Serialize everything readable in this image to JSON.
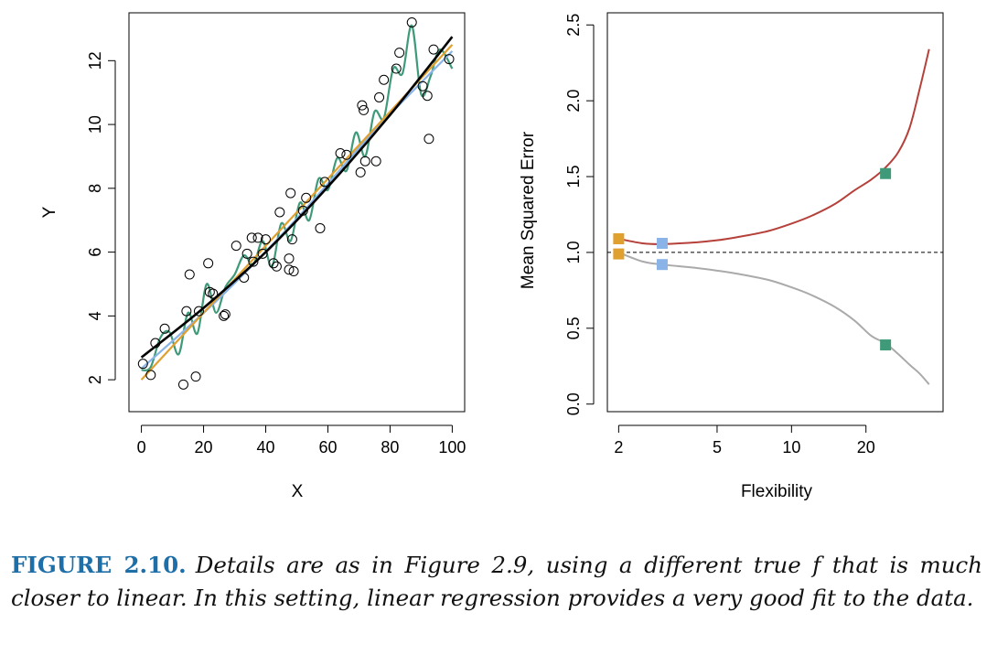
{
  "chart_data": [
    {
      "type": "scatter",
      "title": "",
      "xlabel": "X",
      "ylabel": "Y",
      "xlim": [
        -4,
        104
      ],
      "ylim": [
        1.0,
        13.5
      ],
      "xticks": [
        0,
        20,
        40,
        60,
        80,
        100
      ],
      "yticks": [
        2,
        4,
        6,
        8,
        10,
        12
      ],
      "grid": false,
      "points": [
        {
          "x": 0.5,
          "y": 2.5
        },
        {
          "x": 3,
          "y": 2.15
        },
        {
          "x": 4.5,
          "y": 3.15
        },
        {
          "x": 7.5,
          "y": 3.6
        },
        {
          "x": 13.5,
          "y": 1.85
        },
        {
          "x": 14.5,
          "y": 4.15
        },
        {
          "x": 15.5,
          "y": 5.3
        },
        {
          "x": 17.5,
          "y": 2.1
        },
        {
          "x": 18.5,
          "y": 4.15
        },
        {
          "x": 21.5,
          "y": 5.65
        },
        {
          "x": 22,
          "y": 4.75
        },
        {
          "x": 23,
          "y": 4.7
        },
        {
          "x": 26.5,
          "y": 4.0
        },
        {
          "x": 27,
          "y": 4.05
        },
        {
          "x": 30.5,
          "y": 6.2
        },
        {
          "x": 33,
          "y": 5.2
        },
        {
          "x": 34,
          "y": 5.95
        },
        {
          "x": 35.5,
          "y": 6.45
        },
        {
          "x": 36,
          "y": 5.7
        },
        {
          "x": 37.5,
          "y": 6.45
        },
        {
          "x": 39,
          "y": 5.95
        },
        {
          "x": 40,
          "y": 6.4
        },
        {
          "x": 42.5,
          "y": 5.65
        },
        {
          "x": 43.5,
          "y": 5.55
        },
        {
          "x": 44.5,
          "y": 7.25
        },
        {
          "x": 47.5,
          "y": 5.45
        },
        {
          "x": 47.5,
          "y": 5.8
        },
        {
          "x": 48,
          "y": 7.85
        },
        {
          "x": 48.5,
          "y": 6.4
        },
        {
          "x": 49,
          "y": 5.4
        },
        {
          "x": 52,
          "y": 7.3
        },
        {
          "x": 53,
          "y": 7.7
        },
        {
          "x": 57.5,
          "y": 6.75
        },
        {
          "x": 59,
          "y": 8.2
        },
        {
          "x": 64,
          "y": 9.1
        },
        {
          "x": 66,
          "y": 9.05
        },
        {
          "x": 70.5,
          "y": 8.5
        },
        {
          "x": 71,
          "y": 10.6
        },
        {
          "x": 71.5,
          "y": 10.45
        },
        {
          "x": 72,
          "y": 8.85
        },
        {
          "x": 75.5,
          "y": 8.85
        },
        {
          "x": 76.5,
          "y": 10.85
        },
        {
          "x": 78,
          "y": 11.4
        },
        {
          "x": 82,
          "y": 11.75
        },
        {
          "x": 83,
          "y": 12.25
        },
        {
          "x": 87,
          "y": 13.2
        },
        {
          "x": 90.5,
          "y": 11.2
        },
        {
          "x": 92,
          "y": 10.9
        },
        {
          "x": 92.5,
          "y": 9.55
        },
        {
          "x": 94,
          "y": 12.35
        },
        {
          "x": 99,
          "y": 12.05
        }
      ],
      "series": [
        {
          "color": "#000000",
          "x": [
            0,
            20,
            40,
            60,
            80,
            100
          ],
          "y": [
            2.7,
            4.25,
            6.0,
            8.05,
            10.3,
            12.75
          ]
        },
        {
          "color": "#e0a030",
          "x": [
            0,
            50,
            100
          ],
          "y": [
            2.0,
            7.25,
            12.5
          ]
        },
        {
          "color": "#8ab4e8",
          "x": [
            0,
            25,
            50,
            75,
            100
          ],
          "y": [
            2.35,
            4.55,
            7.05,
            9.8,
            12.3
          ]
        },
        {
          "color": "#3e9a78",
          "x": [
            0,
            3,
            6,
            9,
            12,
            15,
            18,
            21,
            24,
            27,
            30,
            33,
            36,
            39,
            42,
            45,
            48,
            51,
            54,
            57,
            60,
            63,
            66,
            69,
            72,
            75,
            78,
            81,
            84,
            87,
            90,
            93,
            96,
            100
          ],
          "y": [
            2.3,
            2.4,
            3.3,
            3.5,
            2.8,
            4.1,
            3.45,
            5.0,
            4.1,
            4.9,
            5.3,
            5.9,
            5.6,
            6.35,
            5.55,
            6.9,
            6.35,
            7.55,
            7.0,
            8.3,
            7.95,
            8.95,
            8.55,
            9.75,
            9.0,
            10.4,
            10.2,
            11.75,
            11.6,
            13.1,
            10.95,
            11.5,
            12.35,
            11.75
          ]
        }
      ]
    },
    {
      "type": "line",
      "title": "",
      "xlabel": "Flexibility",
      "ylabel": "Mean Squared Error",
      "xscale": "log",
      "xlim": [
        1.8,
        41
      ],
      "ylim": [
        -0.05,
        2.58
      ],
      "xticks": [
        2,
        5,
        10,
        20
      ],
      "yticks": [
        0.0,
        0.5,
        1.0,
        1.5,
        2.0,
        2.5
      ],
      "grid": false,
      "series": [
        {
          "color": "#b5413a",
          "x": [
            2,
            2.5,
            3,
            4,
            5,
            6,
            8,
            10,
            12,
            15,
            18,
            21,
            24,
            27,
            30,
            33,
            36
          ],
          "y": [
            1.09,
            1.06,
            1.055,
            1.065,
            1.08,
            1.1,
            1.14,
            1.19,
            1.24,
            1.32,
            1.41,
            1.48,
            1.56,
            1.66,
            1.82,
            2.08,
            2.34
          ]
        },
        {
          "color": "#aaaaaa",
          "x": [
            2,
            2.5,
            3,
            4,
            5,
            6,
            8,
            10,
            12,
            15,
            18,
            21,
            24,
            27,
            30,
            33,
            36
          ],
          "y": [
            1.0,
            0.94,
            0.92,
            0.9,
            0.88,
            0.86,
            0.82,
            0.77,
            0.72,
            0.64,
            0.55,
            0.45,
            0.4,
            0.33,
            0.26,
            0.2,
            0.13
          ]
        }
      ],
      "reference_line": {
        "y": 1.0,
        "style": "dashed"
      },
      "markers": [
        {
          "x": 2,
          "y": 1.09,
          "color": "#e0a030"
        },
        {
          "x": 2,
          "y": 0.99,
          "color": "#e0a030"
        },
        {
          "x": 3,
          "y": 1.06,
          "color": "#8ab4e8"
        },
        {
          "x": 3,
          "y": 0.92,
          "color": "#8ab4e8"
        },
        {
          "x": 24,
          "y": 1.52,
          "color": "#3e9a78"
        },
        {
          "x": 24,
          "y": 0.39,
          "color": "#3e9a78"
        }
      ]
    }
  ],
  "caption": {
    "label": "FIGURE 2.10.",
    "text": "Details are as in Figure 2.9, using a different true f  that is much closer to linear. In this setting, linear regression provides a very good fit to the data."
  }
}
